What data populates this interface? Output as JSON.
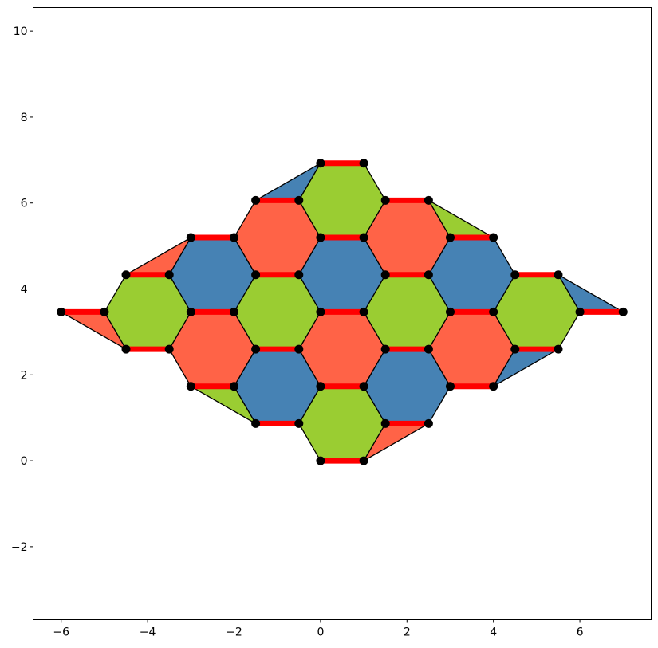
{
  "chart_data": {
    "type": "diagram",
    "xlim": [
      -6.65,
      7.65
    ],
    "ylim": [
      -3.7,
      10.55
    ],
    "x_ticks": [
      -6,
      -4,
      -2,
      0,
      2,
      4,
      6
    ],
    "y_ticks": [
      -2,
      0,
      2,
      4,
      6,
      8,
      10
    ],
    "x_tick_labels": [
      "−6",
      "−4",
      "−2",
      "0",
      "2",
      "4",
      "6"
    ],
    "y_tick_labels": [
      "−2",
      "0",
      "2",
      "4",
      "6",
      "8",
      "10"
    ],
    "grid": false,
    "colors": {
      "green": "#9acd32",
      "red": "#ff6347",
      "blue": "#4682b4",
      "bond": "#ff0000",
      "node": "#000000"
    },
    "hexagons": [
      {
        "color": "green",
        "points": [
          [
            0,
            0
          ],
          [
            1,
            0
          ],
          [
            1.5,
            0.866
          ],
          [
            1,
            1.732
          ],
          [
            0,
            1.732
          ],
          [
            -0.5,
            0.866
          ]
        ]
      },
      {
        "color": "blue",
        "points": [
          [
            1.5,
            0.866
          ],
          [
            2.5,
            0.866
          ],
          [
            3,
            1.732
          ],
          [
            2.5,
            2.598
          ],
          [
            1.5,
            2.598
          ],
          [
            1,
            1.732
          ]
        ]
      },
      {
        "color": "red",
        "points": [
          [
            3,
            1.732
          ],
          [
            4,
            1.732
          ],
          [
            4.5,
            2.598
          ],
          [
            4,
            3.464
          ],
          [
            3,
            3.464
          ],
          [
            2.5,
            2.598
          ]
        ]
      },
      {
        "color": "green",
        "points": [
          [
            4.5,
            2.598
          ],
          [
            5.5,
            2.598
          ],
          [
            6,
            3.464
          ],
          [
            5.5,
            4.33
          ],
          [
            4.5,
            4.33
          ],
          [
            4,
            3.464
          ]
        ]
      },
      {
        "color": "blue",
        "points": [
          [
            -1.5,
            0.866
          ],
          [
            -0.5,
            0.866
          ],
          [
            0,
            1.732
          ],
          [
            -0.5,
            2.598
          ],
          [
            -1.5,
            2.598
          ],
          [
            -2,
            1.732
          ]
        ]
      },
      {
        "color": "red",
        "points": [
          [
            0,
            1.732
          ],
          [
            1,
            1.732
          ],
          [
            1.5,
            2.598
          ],
          [
            1,
            3.464
          ],
          [
            0,
            3.464
          ],
          [
            -0.5,
            2.598
          ]
        ]
      },
      {
        "color": "green",
        "points": [
          [
            1.5,
            2.598
          ],
          [
            2.5,
            2.598
          ],
          [
            3,
            3.464
          ],
          [
            2.5,
            4.33
          ],
          [
            1.5,
            4.33
          ],
          [
            1,
            3.464
          ]
        ]
      },
      {
        "color": "blue",
        "points": [
          [
            3,
            3.464
          ],
          [
            4,
            3.464
          ],
          [
            4.5,
            4.33
          ],
          [
            4,
            5.196
          ],
          [
            3,
            5.196
          ],
          [
            2.5,
            4.33
          ]
        ]
      },
      {
        "color": "red",
        "points": [
          [
            -3,
            1.732
          ],
          [
            -2,
            1.732
          ],
          [
            -1.5,
            2.598
          ],
          [
            -2,
            3.464
          ],
          [
            -3,
            3.464
          ],
          [
            -3.5,
            2.598
          ]
        ]
      },
      {
        "color": "green",
        "points": [
          [
            -1.5,
            2.598
          ],
          [
            -0.5,
            2.598
          ],
          [
            0,
            3.464
          ],
          [
            -0.5,
            4.33
          ],
          [
            -1.5,
            4.33
          ],
          [
            -2,
            3.464
          ]
        ]
      },
      {
        "color": "blue",
        "points": [
          [
            0,
            3.464
          ],
          [
            1,
            3.464
          ],
          [
            1.5,
            4.33
          ],
          [
            1,
            5.196
          ],
          [
            0,
            5.196
          ],
          [
            -0.5,
            4.33
          ]
        ]
      },
      {
        "color": "red",
        "points": [
          [
            1.5,
            4.33
          ],
          [
            2.5,
            4.33
          ],
          [
            3,
            5.196
          ],
          [
            2.5,
            6.062
          ],
          [
            1.5,
            6.062
          ],
          [
            1,
            5.196
          ]
        ]
      },
      {
        "color": "green",
        "points": [
          [
            -4.5,
            2.598
          ],
          [
            -3.5,
            2.598
          ],
          [
            -3,
            3.464
          ],
          [
            -3.5,
            4.33
          ],
          [
            -4.5,
            4.33
          ],
          [
            -5,
            3.464
          ]
        ]
      },
      {
        "color": "blue",
        "points": [
          [
            -3,
            3.464
          ],
          [
            -2,
            3.464
          ],
          [
            -1.5,
            4.33
          ],
          [
            -2,
            5.196
          ],
          [
            -3,
            5.196
          ],
          [
            -3.5,
            4.33
          ]
        ]
      },
      {
        "color": "red",
        "points": [
          [
            -1.5,
            4.33
          ],
          [
            -0.5,
            4.33
          ],
          [
            0,
            5.196
          ],
          [
            -0.5,
            6.062
          ],
          [
            -1.5,
            6.062
          ],
          [
            -2,
            5.196
          ]
        ]
      },
      {
        "color": "green",
        "points": [
          [
            0,
            5.196
          ],
          [
            1,
            5.196
          ],
          [
            1.5,
            6.062
          ],
          [
            1,
            6.928
          ],
          [
            0,
            6.928
          ],
          [
            -0.5,
            6.062
          ]
        ]
      }
    ],
    "edge_triangles": [
      {
        "color": "red",
        "points": [
          [
            1,
            0
          ],
          [
            2.5,
            0.866
          ],
          [
            1.5,
            0.866
          ]
        ]
      },
      {
        "color": "blue",
        "points": [
          [
            4,
            1.732
          ],
          [
            5.5,
            2.598
          ],
          [
            4.5,
            2.598
          ]
        ]
      },
      {
        "color": "blue",
        "points": [
          [
            5.5,
            4.33
          ],
          [
            7,
            3.464
          ],
          [
            6,
            3.464
          ]
        ]
      },
      {
        "color": "green",
        "points": [
          [
            2.5,
            6.062
          ],
          [
            4,
            5.196
          ],
          [
            3,
            5.196
          ]
        ]
      },
      {
        "color": "blue",
        "points": [
          [
            0,
            6.928
          ],
          [
            -1.5,
            6.062
          ],
          [
            -0.5,
            6.062
          ]
        ]
      },
      {
        "color": "red",
        "points": [
          [
            -3,
            5.196
          ],
          [
            -4.5,
            4.33
          ],
          [
            -3.5,
            4.33
          ]
        ]
      },
      {
        "color": "red",
        "points": [
          [
            -6,
            3.464
          ],
          [
            -4.5,
            2.598
          ],
          [
            -5,
            3.464
          ]
        ]
      },
      {
        "color": "green",
        "points": [
          [
            -3,
            1.732
          ],
          [
            -1.5,
            0.866
          ],
          [
            -2,
            1.732
          ]
        ]
      }
    ],
    "bonds": [
      [
        [
          0,
          0
        ],
        [
          1,
          0
        ]
      ],
      [
        [
          -1.5,
          0.866
        ],
        [
          -0.5,
          0.866
        ]
      ],
      [
        [
          1.5,
          0.866
        ],
        [
          2.5,
          0.866
        ]
      ],
      [
        [
          -3,
          1.732
        ],
        [
          -2,
          1.732
        ]
      ],
      [
        [
          0,
          1.732
        ],
        [
          1,
          1.732
        ]
      ],
      [
        [
          3,
          1.732
        ],
        [
          4,
          1.732
        ]
      ],
      [
        [
          -4.5,
          2.598
        ],
        [
          -3.5,
          2.598
        ]
      ],
      [
        [
          -1.5,
          2.598
        ],
        [
          -0.5,
          2.598
        ]
      ],
      [
        [
          1.5,
          2.598
        ],
        [
          2.5,
          2.598
        ]
      ],
      [
        [
          4.5,
          2.598
        ],
        [
          5.5,
          2.598
        ]
      ],
      [
        [
          -6,
          3.464
        ],
        [
          -5,
          3.464
        ]
      ],
      [
        [
          -3,
          3.464
        ],
        [
          -2,
          3.464
        ]
      ],
      [
        [
          0,
          3.464
        ],
        [
          1,
          3.464
        ]
      ],
      [
        [
          3,
          3.464
        ],
        [
          4,
          3.464
        ]
      ],
      [
        [
          6,
          3.464
        ],
        [
          7,
          3.464
        ]
      ],
      [
        [
          -4.5,
          4.33
        ],
        [
          -3.5,
          4.33
        ]
      ],
      [
        [
          -1.5,
          4.33
        ],
        [
          -0.5,
          4.33
        ]
      ],
      [
        [
          1.5,
          4.33
        ],
        [
          2.5,
          4.33
        ]
      ],
      [
        [
          4.5,
          4.33
        ],
        [
          5.5,
          4.33
        ]
      ],
      [
        [
          -3,
          5.196
        ],
        [
          -2,
          5.196
        ]
      ],
      [
        [
          0,
          5.196
        ],
        [
          1,
          5.196
        ]
      ],
      [
        [
          3,
          5.196
        ],
        [
          4,
          5.196
        ]
      ],
      [
        [
          -1.5,
          6.062
        ],
        [
          -0.5,
          6.062
        ]
      ],
      [
        [
          1.5,
          6.062
        ],
        [
          2.5,
          6.062
        ]
      ],
      [
        [
          0,
          6.928
        ],
        [
          1,
          6.928
        ]
      ]
    ]
  }
}
